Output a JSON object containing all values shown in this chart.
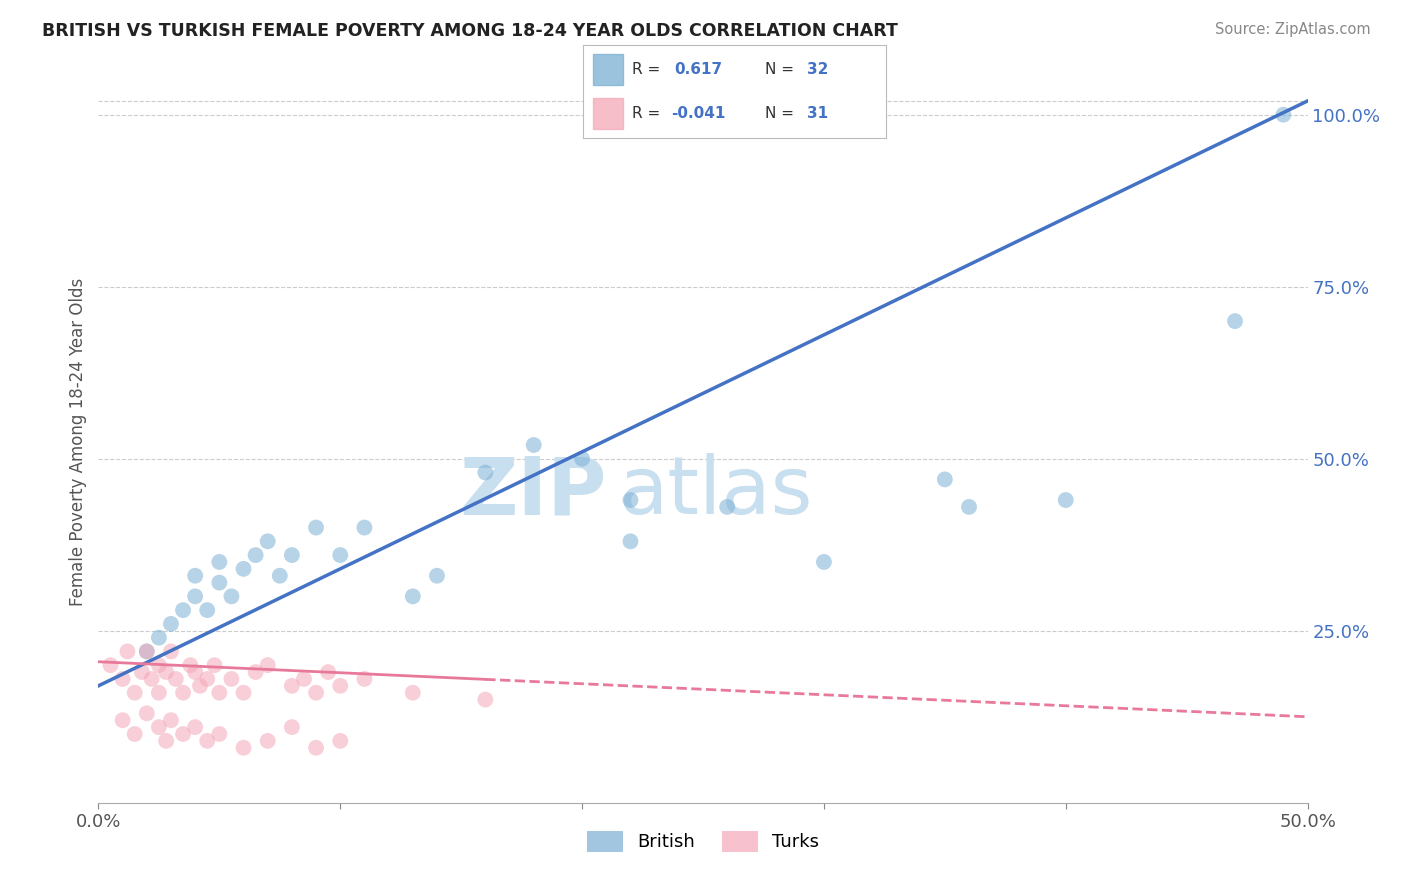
{
  "title": "BRITISH VS TURKISH FEMALE POVERTY AMONG 18-24 YEAR OLDS CORRELATION CHART",
  "source": "Source: ZipAtlas.com",
  "ylabel": "Female Poverty Among 18-24 Year Olds",
  "xlim": [
    0.0,
    0.5
  ],
  "ylim": [
    0.0,
    1.05
  ],
  "british_color": "#7BAFD4",
  "turks_color": "#F4A8B8",
  "british_line_color": "#4472C4",
  "turks_line_color": "#E8799A",
  "R_british": 0.617,
  "N_british": 32,
  "R_turks": -0.041,
  "N_turks": 31,
  "watermark": "ZIPatlas",
  "watermark_color": "#C8DFF0",
  "background_color": "#FFFFFF",
  "grid_color": "#CCCCCC",
  "ytick_right_vals": [
    0.25,
    0.5,
    0.75,
    1.0
  ],
  "ytick_right_labels": [
    "25.0%",
    "50.0%",
    "75.0%",
    "100.0%"
  ],
  "british_x": [
    0.02,
    0.025,
    0.03,
    0.035,
    0.04,
    0.04,
    0.045,
    0.05,
    0.05,
    0.055,
    0.06,
    0.065,
    0.07,
    0.075,
    0.08,
    0.09,
    0.1,
    0.11,
    0.13,
    0.14,
    0.16,
    0.18,
    0.2,
    0.22,
    0.22,
    0.26,
    0.3,
    0.35,
    0.36,
    0.4,
    0.47,
    0.49
  ],
  "british_y": [
    0.22,
    0.24,
    0.26,
    0.28,
    0.3,
    0.33,
    0.28,
    0.32,
    0.35,
    0.3,
    0.34,
    0.36,
    0.38,
    0.33,
    0.36,
    0.4,
    0.36,
    0.4,
    0.3,
    0.33,
    0.48,
    0.52,
    0.5,
    0.38,
    0.44,
    0.43,
    0.35,
    0.47,
    0.43,
    0.44,
    0.7,
    1.0
  ],
  "turks_x": [
    0.005,
    0.01,
    0.012,
    0.015,
    0.018,
    0.02,
    0.022,
    0.025,
    0.025,
    0.028,
    0.03,
    0.032,
    0.035,
    0.038,
    0.04,
    0.042,
    0.045,
    0.048,
    0.05,
    0.055,
    0.06,
    0.065,
    0.07,
    0.08,
    0.085,
    0.09,
    0.095,
    0.1,
    0.11,
    0.13,
    0.16
  ],
  "turks_y": [
    0.2,
    0.18,
    0.22,
    0.16,
    0.19,
    0.22,
    0.18,
    0.2,
    0.16,
    0.19,
    0.22,
    0.18,
    0.16,
    0.2,
    0.19,
    0.17,
    0.18,
    0.2,
    0.16,
    0.18,
    0.16,
    0.19,
    0.2,
    0.17,
    0.18,
    0.16,
    0.19,
    0.17,
    0.18,
    0.16,
    0.15
  ],
  "turks_extra_x": [
    0.01,
    0.015,
    0.02,
    0.025,
    0.028,
    0.03,
    0.035,
    0.04,
    0.045,
    0.05,
    0.06,
    0.07,
    0.08,
    0.09,
    0.1
  ],
  "turks_extra_y": [
    0.12,
    0.1,
    0.13,
    0.11,
    0.09,
    0.12,
    0.1,
    0.11,
    0.09,
    0.1,
    0.08,
    0.09,
    0.11,
    0.08,
    0.09
  ],
  "brit_line_x0": 0.0,
  "brit_line_y0": 0.17,
  "brit_line_x1": 0.5,
  "brit_line_y1": 1.02,
  "turk_line_x0": 0.0,
  "turk_line_y0": 0.205,
  "turk_line_x1": 0.5,
  "turk_line_y1": 0.125
}
